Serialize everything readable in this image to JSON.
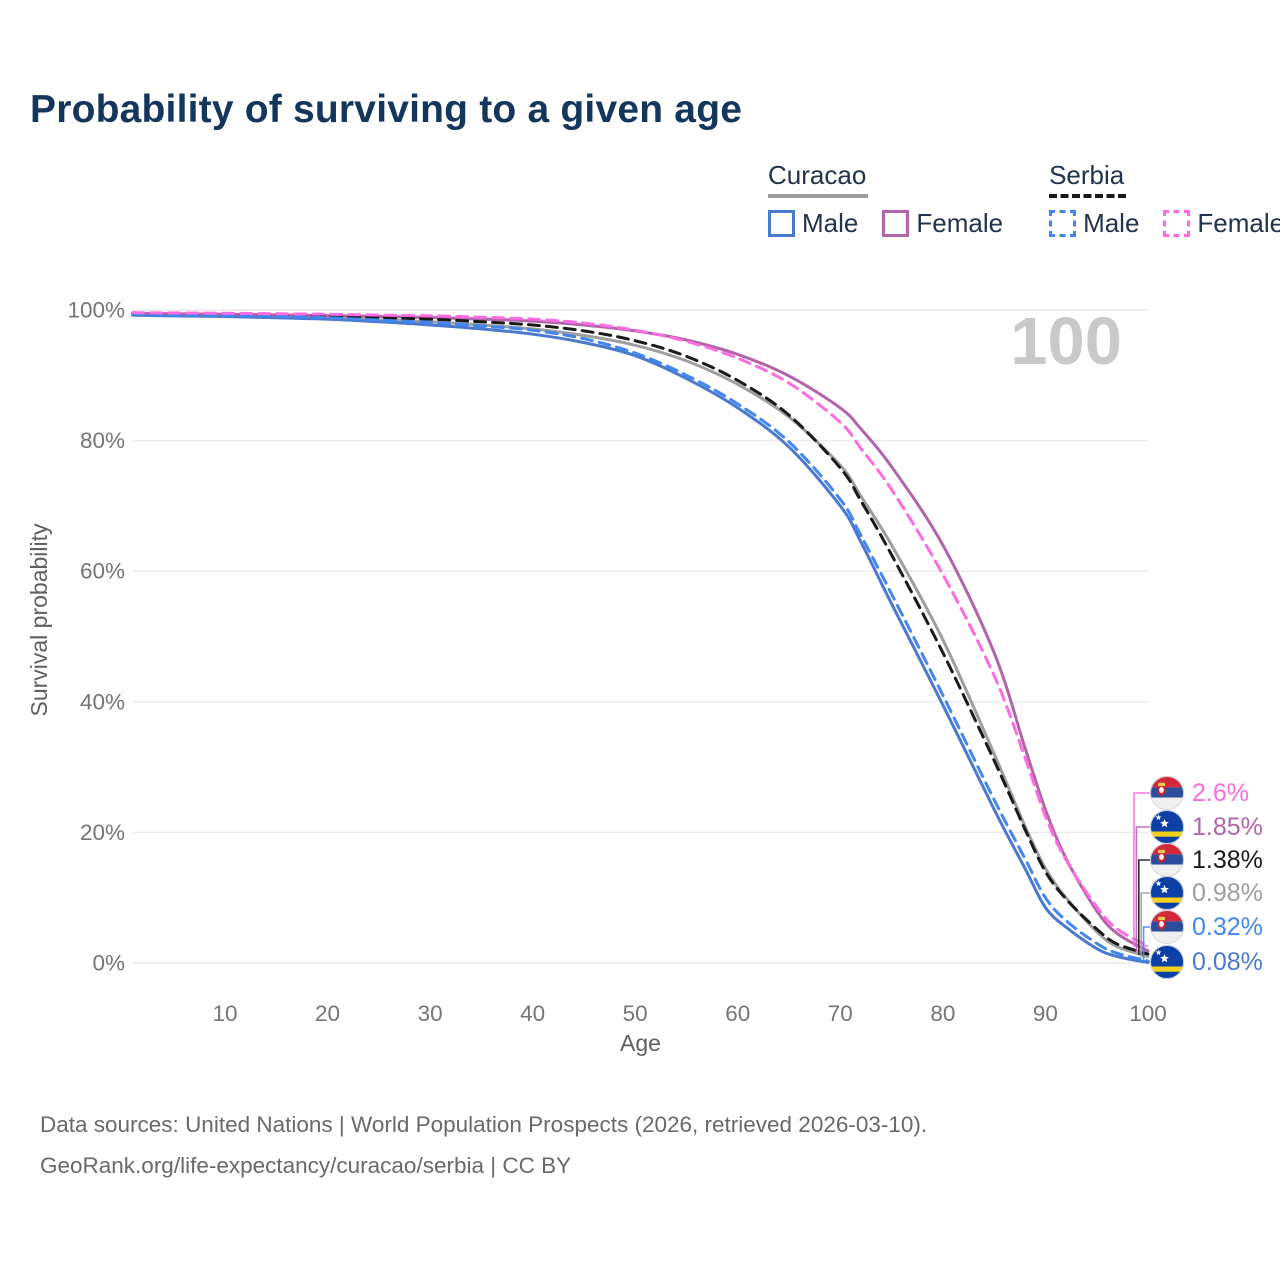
{
  "title": "Probability of surviving to a given age",
  "watermark": "100",
  "legend": {
    "groups": [
      {
        "name": "Curacao",
        "line_style": "solid",
        "underline_color": "#9e9e9e",
        "items": [
          {
            "label": "Male",
            "color": "#4a79cf"
          },
          {
            "label": "Female",
            "color": "#b264ab"
          }
        ]
      },
      {
        "name": "Serbia",
        "line_style": "dashed",
        "underline_color": "#1a1a1a",
        "items": [
          {
            "label": "Male",
            "color": "#4286f0"
          },
          {
            "label": "Female",
            "color": "#fa6ce0"
          }
        ]
      }
    ]
  },
  "chart_data": {
    "type": "line",
    "title": "Probability of surviving to a given age",
    "xlabel": "Age",
    "ylabel": "Survival probability",
    "xlim": [
      1,
      100
    ],
    "ylim": [
      0,
      100
    ],
    "xticks": [
      10,
      20,
      30,
      40,
      50,
      60,
      70,
      80,
      90,
      100
    ],
    "yticks": [
      0,
      20,
      40,
      60,
      80,
      100
    ],
    "ytick_suffix": "%",
    "grid": "horizontal-only",
    "legend_position": "top-right",
    "x": [
      1,
      5,
      10,
      15,
      20,
      25,
      30,
      35,
      40,
      45,
      50,
      55,
      60,
      65,
      70,
      72,
      75,
      80,
      85,
      88,
      90,
      92,
      95,
      97,
      100
    ],
    "series": [
      {
        "name": "Curacao (total)",
        "country": "Curacao",
        "sex": "total",
        "color": "#9e9e9e",
        "dash": "solid",
        "end_value": 0.98,
        "values": [
          99.35,
          99.25,
          99.15,
          99.0,
          98.8,
          98.5,
          98.2,
          97.7,
          97.1,
          96.1,
          94.6,
          92.2,
          88.6,
          83.6,
          76.2,
          71.5,
          64.0,
          49.5,
          32.0,
          21.0,
          14.5,
          10.0,
          4.8,
          2.5,
          0.98
        ]
      },
      {
        "name": "Curacao Male",
        "country": "Curacao",
        "sex": "male",
        "color": "#4a79cf",
        "dash": "solid",
        "end_value": 0.08,
        "values": [
          99.2,
          99.1,
          99.0,
          98.8,
          98.6,
          98.2,
          97.7,
          97.1,
          96.3,
          95.0,
          93.0,
          89.5,
          85.0,
          79.0,
          70.0,
          64.5,
          55.0,
          39.5,
          23.5,
          14.5,
          8.5,
          5.5,
          2.2,
          1.0,
          0.08
        ]
      },
      {
        "name": "Curacao Female",
        "country": "Curacao",
        "sex": "female",
        "color": "#b264ab",
        "dash": "solid",
        "end_value": 1.85,
        "values": [
          99.5,
          99.42,
          99.35,
          99.25,
          99.15,
          99.0,
          98.85,
          98.6,
          98.3,
          97.7,
          96.8,
          95.4,
          93.2,
          89.9,
          85.0,
          81.8,
          76.0,
          64.0,
          47.5,
          33.0,
          23.5,
          16.0,
          8.0,
          4.5,
          1.85
        ]
      },
      {
        "name": "Serbia (total)",
        "country": "Serbia",
        "sex": "total",
        "color": "#1a1a1a",
        "dash": "dashed",
        "end_value": 1.38,
        "values": [
          99.5,
          99.42,
          99.35,
          99.22,
          99.1,
          98.85,
          98.6,
          98.2,
          97.7,
          96.8,
          95.3,
          92.9,
          89.2,
          83.9,
          75.8,
          70.8,
          62.5,
          47.5,
          31.0,
          20.5,
          14.0,
          9.8,
          5.2,
          2.9,
          1.38
        ]
      },
      {
        "name": "Serbia Male",
        "country": "Serbia",
        "sex": "male",
        "color": "#4286f0",
        "dash": "dashed",
        "end_value": 0.32,
        "values": [
          99.35,
          99.25,
          99.15,
          99.0,
          98.8,
          98.45,
          98.1,
          97.55,
          96.9,
          95.6,
          93.4,
          90.0,
          85.6,
          79.8,
          71.0,
          65.5,
          56.5,
          41.0,
          25.0,
          16.0,
          10.0,
          6.5,
          3.0,
          1.5,
          0.32
        ]
      },
      {
        "name": "Serbia Female",
        "country": "Serbia",
        "sex": "female",
        "color": "#fa6ce0",
        "dash": "dashed",
        "end_value": 2.6,
        "values": [
          99.6,
          99.55,
          99.5,
          99.42,
          99.35,
          99.22,
          99.1,
          98.9,
          98.6,
          98.0,
          96.9,
          95.2,
          92.6,
          88.8,
          82.8,
          78.8,
          72.5,
          59.5,
          44.0,
          31.5,
          22.5,
          15.8,
          8.6,
          5.2,
          2.6
        ]
      }
    ]
  },
  "end_labels": [
    {
      "flag": "serbia",
      "series": "Serbia Female",
      "text": "2.6%",
      "color": "#fa6ce0",
      "end_value": 2.6
    },
    {
      "flag": "curacao",
      "series": "Curacao Female",
      "text": "1.85%",
      "color": "#b264ab",
      "end_value": 1.85
    },
    {
      "flag": "serbia",
      "series": "Serbia (total)",
      "text": "1.38%",
      "color": "#1a1a1a",
      "end_value": 1.38
    },
    {
      "flag": "curacao",
      "series": "Curacao (total)",
      "text": "0.98%",
      "color": "#9e9e9e",
      "end_value": 0.98
    },
    {
      "flag": "serbia",
      "series": "Serbia Male",
      "text": "0.32%",
      "color": "#4286f0",
      "end_value": 0.32
    },
    {
      "flag": "curacao",
      "series": "Curacao Male",
      "text": "0.08%",
      "color": "#4a79cf",
      "end_value": 0.08
    }
  ],
  "footer": {
    "line1": "Data sources: United Nations | World Population Prospects (2026, retrieved 2026-03-10).",
    "line2": "GeoRank.org/life-expectancy/curacao/serbia | CC BY"
  }
}
